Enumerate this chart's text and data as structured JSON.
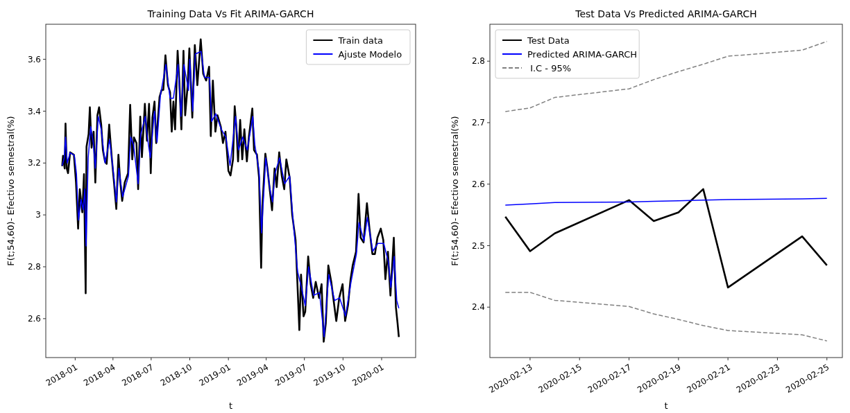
{
  "chart_data": [
    {
      "type": "line",
      "title": "Training Data Vs Fit ARIMA-GARCH",
      "xlabel": "t",
      "ylabel": "F(t;54,60)- Efectivo semestral(%)",
      "xlim": [
        "2017-10-23",
        "2020-03-22"
      ],
      "ylim": [
        2.45,
        3.735
      ],
      "xticks": [
        {
          "value": "2018-01-01",
          "label": "2018-01"
        },
        {
          "value": "2018-04-01",
          "label": "2018-04"
        },
        {
          "value": "2018-07-01",
          "label": "2018-07"
        },
        {
          "value": "2018-10-01",
          "label": "2018-10"
        },
        {
          "value": "2019-01-01",
          "label": "2019-01"
        },
        {
          "value": "2019-04-01",
          "label": "2019-04"
        },
        {
          "value": "2019-07-01",
          "label": "2019-07"
        },
        {
          "value": "2019-10-01",
          "label": "2019-10"
        },
        {
          "value": "2020-01-01",
          "label": "2020-01"
        }
      ],
      "yticks": [
        2.6,
        2.8,
        3.0,
        3.2,
        3.4,
        3.6
      ],
      "grid": false,
      "legend": "top right",
      "series": [
        {
          "name": "Train data",
          "color": "#000000",
          "x": [
            "2017-12-01",
            "2017-12-03",
            "2017-12-07",
            "2017-12-09",
            "2017-12-12",
            "2017-12-15",
            "2017-12-20",
            "2017-12-29",
            "2018-01-03",
            "2018-01-08",
            "2018-01-12",
            "2018-01-18",
            "2018-01-22",
            "2018-01-26",
            "2018-01-28",
            "2018-02-02",
            "2018-02-05",
            "2018-02-09",
            "2018-02-14",
            "2018-02-18",
            "2018-02-23",
            "2018-02-27",
            "2018-03-04",
            "2018-03-08",
            "2018-03-13",
            "2018-03-17",
            "2018-03-23",
            "2018-03-29",
            "2018-04-03",
            "2018-04-09",
            "2018-04-14",
            "2018-04-18",
            "2018-04-23",
            "2018-04-29",
            "2018-05-07",
            "2018-05-12",
            "2018-05-17",
            "2018-05-21",
            "2018-05-27",
            "2018-05-31",
            "2018-06-05",
            "2018-06-09",
            "2018-06-16",
            "2018-06-21",
            "2018-06-26",
            "2018-06-30",
            "2018-07-04",
            "2018-07-09",
            "2018-07-13",
            "2018-07-21",
            "2018-07-26",
            "2018-07-30",
            "2018-08-04",
            "2018-08-10",
            "2018-08-15",
            "2018-08-19",
            "2018-08-23",
            "2018-08-27",
            "2018-09-02",
            "2018-09-06",
            "2018-09-11",
            "2018-09-16",
            "2018-09-20",
            "2018-09-26",
            "2018-09-30",
            "2018-10-07",
            "2018-10-13",
            "2018-10-19",
            "2018-10-27",
            "2018-11-02",
            "2018-11-09",
            "2018-11-16",
            "2018-11-20",
            "2018-11-25",
            "2018-12-01",
            "2018-12-06",
            "2018-12-14",
            "2018-12-19",
            "2018-12-25",
            "2019-01-01",
            "2019-01-06",
            "2019-01-12",
            "2019-01-16",
            "2019-01-20",
            "2019-01-24",
            "2019-01-29",
            "2019-02-03",
            "2019-02-08",
            "2019-02-14",
            "2019-02-19",
            "2019-02-27",
            "2019-03-03",
            "2019-03-10",
            "2019-03-15",
            "2019-03-20",
            "2019-03-23",
            "2019-03-30",
            "2019-04-04",
            "2019-04-10",
            "2019-04-15",
            "2019-04-21",
            "2019-04-26",
            "2019-05-02",
            "2019-05-08",
            "2019-05-14",
            "2019-05-19",
            "2019-05-27",
            "2019-06-02",
            "2019-06-10",
            "2019-06-14",
            "2019-06-19",
            "2019-06-23",
            "2019-06-29",
            "2019-07-03",
            "2019-07-10",
            "2019-07-16",
            "2019-07-22",
            "2019-07-28",
            "2019-08-05",
            "2019-08-11",
            "2019-08-16",
            "2019-08-21",
            "2019-08-27",
            "2019-09-03",
            "2019-09-10",
            "2019-09-15",
            "2019-09-22",
            "2019-09-30",
            "2019-10-06",
            "2019-10-13",
            "2019-10-19",
            "2019-10-24",
            "2019-11-01",
            "2019-11-07",
            "2019-11-12",
            "2019-11-19",
            "2019-11-27",
            "2019-12-03",
            "2019-12-10",
            "2019-12-16",
            "2019-12-22",
            "2019-12-30",
            "2020-01-05",
            "2020-01-10",
            "2020-01-16",
            "2020-01-22",
            "2020-01-30",
            "2020-02-04",
            "2020-02-08",
            "2020-02-11"
          ],
          "values": [
            3.188,
            3.228,
            3.179,
            3.352,
            3.179,
            3.161,
            3.241,
            3.232,
            3.125,
            2.947,
            3.099,
            3.01,
            3.157,
            2.698,
            3.263,
            3.312,
            3.415,
            3.259,
            3.321,
            3.125,
            3.384,
            3.415,
            3.348,
            3.25,
            3.206,
            3.197,
            3.348,
            3.223,
            3.134,
            3.023,
            3.232,
            3.134,
            3.054,
            3.125,
            3.161,
            3.424,
            3.214,
            3.299,
            3.277,
            3.099,
            3.379,
            3.223,
            3.428,
            3.286,
            3.428,
            3.161,
            3.375,
            3.437,
            3.277,
            3.455,
            3.482,
            3.482,
            3.615,
            3.5,
            3.473,
            3.321,
            3.437,
            3.33,
            3.633,
            3.518,
            3.33,
            3.633,
            3.384,
            3.5,
            3.642,
            3.375,
            3.655,
            3.5,
            3.677,
            3.544,
            3.518,
            3.571,
            3.304,
            3.518,
            3.321,
            3.384,
            3.339,
            3.277,
            3.321,
            3.17,
            3.152,
            3.214,
            3.419,
            3.339,
            3.206,
            3.366,
            3.214,
            3.33,
            3.206,
            3.304,
            3.41,
            3.25,
            3.232,
            3.143,
            2.796,
            3.036,
            3.236,
            3.179,
            3.09,
            3.018,
            3.179,
            3.107,
            3.241,
            3.152,
            3.099,
            3.214,
            3.143,
            3.0,
            2.903,
            2.752,
            2.556,
            2.77,
            2.609,
            2.627,
            2.84,
            2.733,
            2.68,
            2.742,
            2.68,
            2.733,
            2.511,
            2.582,
            2.805,
            2.742,
            2.653,
            2.591,
            2.68,
            2.733,
            2.591,
            2.653,
            2.752,
            2.805,
            2.858,
            3.081,
            2.912,
            2.894,
            3.045,
            2.947,
            2.849,
            2.849,
            2.912,
            2.947,
            2.903,
            2.752,
            2.858,
            2.689,
            2.912,
            2.644,
            2.582,
            2.529
          ]
        },
        {
          "name": "Ajuste Modelo",
          "color": "#0000ff",
          "x": [
            "2017-12-01",
            "2017-12-06",
            "2017-12-09",
            "2017-12-13",
            "2017-12-20",
            "2017-12-30",
            "2018-01-04",
            "2018-01-09",
            "2018-01-15",
            "2018-01-20",
            "2018-01-24",
            "2018-01-27",
            "2018-02-01",
            "2018-02-07",
            "2018-02-13",
            "2018-02-18",
            "2018-02-25",
            "2018-03-04",
            "2018-03-13",
            "2018-03-24",
            "2018-04-03",
            "2018-04-09",
            "2018-04-15",
            "2018-04-24",
            "2018-05-08",
            "2018-05-13",
            "2018-05-20",
            "2018-05-31",
            "2018-06-06",
            "2018-06-17",
            "2018-06-22",
            "2018-06-29",
            "2018-07-09",
            "2018-07-15",
            "2018-07-23",
            "2018-08-05",
            "2018-08-15",
            "2018-08-23",
            "2018-09-03",
            "2018-09-10",
            "2018-09-17",
            "2018-09-28",
            "2018-10-01",
            "2018-10-08",
            "2018-10-14",
            "2018-10-28",
            "2018-11-05",
            "2018-11-17",
            "2018-11-22",
            "2018-12-02",
            "2018-12-15",
            "2018-12-26",
            "2019-01-05",
            "2019-01-18",
            "2019-01-25",
            "2019-02-04",
            "2019-02-15",
            "2019-02-28",
            "2019-03-05",
            "2019-03-15",
            "2019-03-21",
            "2019-03-31",
            "2019-04-10",
            "2019-04-16",
            "2019-04-22",
            "2019-05-03",
            "2019-05-15",
            "2019-05-27",
            "2019-06-03",
            "2019-06-15",
            "2019-06-24",
            "2019-07-03",
            "2019-07-11",
            "2019-07-23",
            "2019-08-06",
            "2019-08-17",
            "2019-08-28",
            "2019-09-11",
            "2019-09-23",
            "2019-10-07",
            "2019-10-20",
            "2019-11-02",
            "2019-11-08",
            "2019-11-20",
            "2019-11-28",
            "2019-12-11",
            "2019-12-23",
            "2020-01-06",
            "2020-01-17",
            "2020-01-23",
            "2020-01-31",
            "2020-02-06",
            "2020-02-11"
          ],
          "values": [
            3.19,
            3.22,
            3.3,
            3.2,
            3.24,
            3.23,
            3.16,
            2.98,
            3.06,
            3.02,
            3.1,
            2.88,
            3.22,
            3.34,
            3.28,
            3.18,
            3.38,
            3.33,
            3.2,
            3.29,
            3.15,
            3.05,
            3.18,
            3.07,
            3.15,
            3.3,
            3.27,
            3.12,
            3.31,
            3.38,
            3.3,
            3.22,
            3.4,
            3.28,
            3.46,
            3.58,
            3.45,
            3.45,
            3.58,
            3.38,
            3.58,
            3.48,
            3.6,
            3.4,
            3.62,
            3.63,
            3.53,
            3.53,
            3.36,
            3.39,
            3.33,
            3.3,
            3.19,
            3.38,
            3.25,
            3.3,
            3.25,
            3.38,
            3.27,
            3.17,
            2.93,
            3.22,
            3.1,
            3.05,
            3.16,
            3.22,
            3.12,
            3.15,
            3.0,
            2.78,
            2.72,
            2.65,
            2.8,
            2.69,
            2.7,
            2.53,
            2.77,
            2.67,
            2.68,
            2.61,
            2.74,
            2.85,
            2.97,
            2.9,
            2.99,
            2.86,
            2.89,
            2.89,
            2.82,
            2.72,
            2.84,
            2.67,
            2.64
          ]
        }
      ]
    },
    {
      "type": "line",
      "title": "Test Data Vs Predicted ARIMA-GARCH",
      "xlabel": "t",
      "ylabel": "F(t;54,60)- Efectivo semestral(%)",
      "x": [
        "2020-02-12",
        "2020-02-13",
        "2020-02-14",
        "2020-02-17",
        "2020-02-18",
        "2020-02-19",
        "2020-02-20",
        "2020-02-21",
        "2020-02-24",
        "2020-02-25"
      ],
      "xlim": [
        "2020-02-11T09:00",
        "2020-02-25T15:00"
      ],
      "ylim": [
        2.318,
        2.86
      ],
      "xticks": [
        "2020-02-13",
        "2020-02-15",
        "2020-02-17",
        "2020-02-19",
        "2020-02-21",
        "2020-02-23",
        "2020-02-25"
      ],
      "yticks": [
        2.4,
        2.5,
        2.6,
        2.7,
        2.8
      ],
      "grid": false,
      "legend": "top left",
      "series": [
        {
          "name": "Test Data",
          "color": "#000000",
          "values": [
            2.547,
            2.491,
            2.52,
            2.574,
            2.54,
            2.554,
            2.592,
            2.432,
            2.515,
            2.468
          ]
        },
        {
          "name": "Predicted ARIMA-GARCH",
          "color": "#0000ff",
          "values": [
            2.566,
            2.568,
            2.57,
            2.571,
            2.572,
            2.573,
            2.574,
            2.575,
            2.576,
            2.577
          ]
        },
        {
          "name": " I.C - 95%",
          "color": "#808080",
          "line_style": "dashed",
          "values": [
            2.718,
            2.724,
            2.741,
            2.755,
            2.77,
            2.783,
            2.795,
            2.808,
            2.818,
            2.832
          ]
        },
        {
          "color": "#808080",
          "line_style": "dashed",
          "values": [
            2.424,
            2.424,
            2.411,
            2.401,
            2.389,
            2.38,
            2.37,
            2.362,
            2.355,
            2.345
          ]
        }
      ]
    }
  ]
}
